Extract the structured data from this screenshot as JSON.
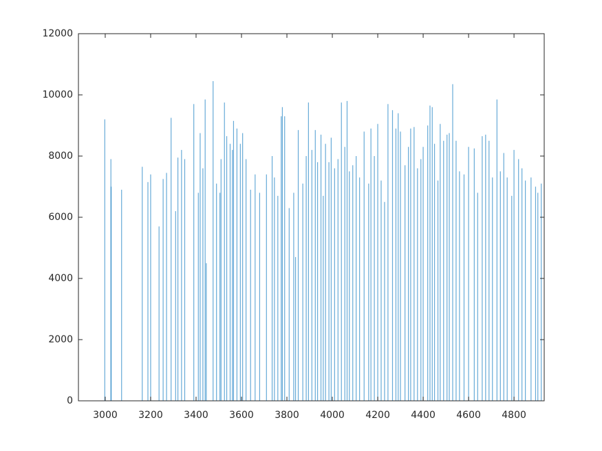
{
  "chart_data": {
    "type": "bar",
    "color": "#0072bd",
    "x": [
      2998,
      3025,
      3026,
      3072,
      3163,
      3188,
      3200,
      3237,
      3255,
      3270,
      3290,
      3310,
      3320,
      3336,
      3350,
      3390,
      3410,
      3418,
      3430,
      3440,
      3445,
      3475,
      3490,
      3505,
      3510,
      3525,
      3535,
      3550,
      3560,
      3565,
      3580,
      3595,
      3605,
      3620,
      3640,
      3660,
      3680,
      3710,
      3735,
      3745,
      3760,
      3775,
      3780,
      3790,
      3810,
      3830,
      3838,
      3850,
      3870,
      3885,
      3895,
      3910,
      3925,
      3935,
      3950,
      3960,
      3970,
      3985,
      3995,
      4010,
      4025,
      4040,
      4055,
      4065,
      4075,
      4090,
      4105,
      4120,
      4140,
      4160,
      4170,
      4185,
      4200,
      4215,
      4230,
      4245,
      4265,
      4280,
      4290,
      4300,
      4320,
      4335,
      4345,
      4360,
      4375,
      4390,
      4400,
      4420,
      4430,
      4440,
      4450,
      4465,
      4475,
      4490,
      4505,
      4515,
      4530,
      4545,
      4560,
      4580,
      4600,
      4625,
      4640,
      4660,
      4675,
      4690,
      4705,
      4725,
      4740,
      4755,
      4770,
      4790,
      4800,
      4820,
      4835,
      4850,
      4875,
      4895,
      4905,
      4920
    ],
    "values": [
      9200,
      7900,
      7000,
      6900,
      7650,
      7150,
      7400,
      5700,
      7250,
      7450,
      9250,
      6200,
      7950,
      8200,
      7900,
      9700,
      6800,
      8750,
      7600,
      9850,
      4500,
      10450,
      7100,
      6800,
      7900,
      9750,
      8650,
      8400,
      8200,
      9150,
      8900,
      8400,
      8750,
      7900,
      6900,
      7400,
      6800,
      7400,
      8000,
      7300,
      6700,
      9300,
      9600,
      9300,
      6300,
      6800,
      4700,
      8850,
      7100,
      8000,
      9750,
      8200,
      8850,
      7800,
      8700,
      6700,
      8400,
      7800,
      8600,
      7600,
      7900,
      9750,
      8300,
      9800,
      7500,
      7700,
      8000,
      7300,
      8800,
      7100,
      8900,
      8000,
      9050,
      7200,
      6500,
      9700,
      9500,
      8900,
      9400,
      8800,
      7700,
      8300,
      8900,
      8950,
      7600,
      7900,
      8300,
      9000,
      9650,
      9600,
      8400,
      7200,
      9050,
      8500,
      8700,
      8750,
      10350,
      8500,
      7500,
      7400,
      8300,
      8250,
      6800,
      8650,
      8700,
      8500,
      7300,
      9850,
      7500,
      8100,
      7300,
      6700,
      8200,
      7900,
      7600,
      7200,
      7300,
      7000,
      6800,
      7100
    ],
    "xlim": [
      2882,
      4933
    ],
    "xticks": [
      3000,
      3200,
      3400,
      3600,
      3800,
      4000,
      4200,
      4400,
      4600,
      4800
    ],
    "ylim": [
      0,
      12000
    ],
    "yticks": [
      0,
      2000,
      4000,
      6000,
      8000,
      10000,
      12000
    ]
  }
}
